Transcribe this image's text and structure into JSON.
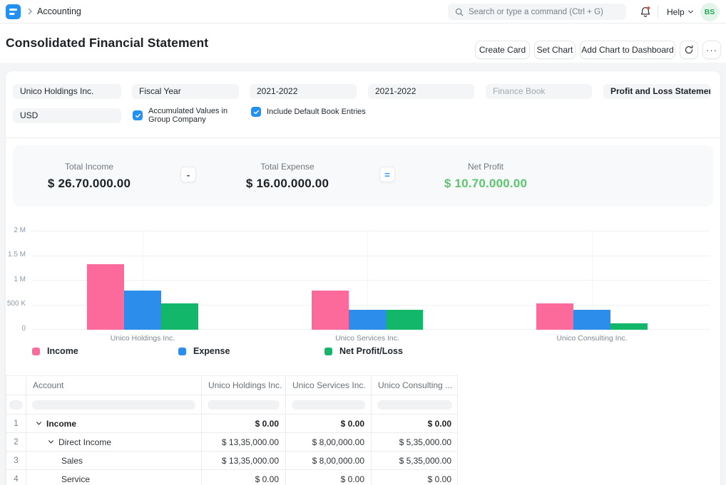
{
  "brand": {
    "logo_color": "#2490ef"
  },
  "navbar": {
    "breadcrumb": "Accounting",
    "search_placeholder": "Search or type a command (Ctrl + G)",
    "help_label": "Help",
    "avatar_initials": "BS",
    "avatar_bg": "#e3f5e9",
    "avatar_color": "#25a75e",
    "notification_dot_color": "#e24c4c"
  },
  "page": {
    "title": "Consolidated Financial Statement",
    "actions": {
      "create_card": "Create Card",
      "set_chart": "Set Chart",
      "add_chart": "Add Chart to Dashboard",
      "menu": "···"
    }
  },
  "filters": {
    "company": "Unico Holdings Inc.",
    "period": "Fiscal Year",
    "from_fiscal_year": "2021-2022",
    "to_fiscal_year": "2021-2022",
    "finance_book_placeholder": "Finance Book",
    "report_type": "Profit and Loss Statement",
    "currency": "USD",
    "accumulated_values_label": "Accumulated Values in Group Company",
    "include_default_books_label": "Include Default Book Entries",
    "checkbox_color": "#2490ef"
  },
  "summary": {
    "items": [
      {
        "label": "Total Income",
        "value": "$ 26.70.000.00",
        "color": "#1c2126"
      },
      {
        "label": "Total Expense",
        "value": "$ 16.00.000.00",
        "color": "#1c2126"
      },
      {
        "label": "Net Profit",
        "value": "$ 10.70.000.00",
        "color": "#5ec46e"
      }
    ],
    "operators": {
      "minus": "-",
      "equals": "="
    }
  },
  "chart_data": {
    "type": "bar",
    "categories": [
      "Unico Holdings Inc.",
      "Unico Services Inc.",
      "Unico Consulting Inc."
    ],
    "series": [
      {
        "name": "Income",
        "color": "#fc699b",
        "values": [
          1335000,
          800000,
          535000
        ]
      },
      {
        "name": "Expense",
        "color": "#2d8deb",
        "values": [
          800000,
          400000,
          400000
        ]
      },
      {
        "name": "Net Profit/Loss",
        "color": "#12b76a",
        "values": [
          535000,
          400000,
          135000
        ]
      }
    ],
    "ylim": [
      0,
      2000000
    ],
    "yticks": [
      "2 M",
      "1.5 M",
      "1 M",
      "500 K",
      "0"
    ],
    "grid": true,
    "legend_position": "bottom"
  },
  "table": {
    "columns": {
      "account": "Account",
      "col1": "Unico Holdings Inc.",
      "col2": "Unico Services Inc.",
      "col3": "Unico Consulting ..."
    },
    "rows": [
      {
        "idx": "1",
        "account": "Income",
        "values": [
          "$ 0.00",
          "$ 0.00",
          "$ 0.00"
        ]
      },
      {
        "idx": "2",
        "account": "Direct Income",
        "values": [
          "$ 13,35,000.00",
          "$ 8,00,000.00",
          "$ 5,35,000.00"
        ]
      },
      {
        "idx": "3",
        "account": "Sales",
        "values": [
          "$ 13,35,000.00",
          "$ 8,00,000.00",
          "$ 5,35,000.00"
        ]
      },
      {
        "idx": "4",
        "account": "Service",
        "values": [
          "$ 0.00",
          "$ 0.00",
          "$ 0.00"
        ]
      }
    ]
  }
}
